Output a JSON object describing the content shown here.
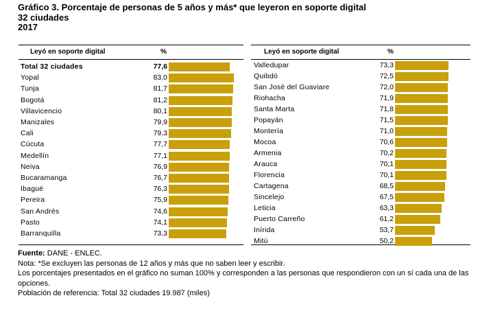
{
  "title": {
    "line1": "Gráfico 3. Porcentaje de personas de 5 años y más* que leyeron en soporte digital",
    "line2": "32 ciudades",
    "line3": "2017"
  },
  "chart_data": {
    "type": "bar",
    "orientation": "horizontal",
    "xlim": [
      0,
      100
    ],
    "color": "#c9a00b",
    "columns": [
      {
        "header_label": "Leyó en soporte digital",
        "header_value": "%",
        "rows": [
          {
            "label": "Total 32 ciudades",
            "value": 77.6,
            "display": "77,6",
            "bold": true
          },
          {
            "label": "Yopal",
            "value": 83.0,
            "display": "83,0"
          },
          {
            "label": "Tunja",
            "value": 81.7,
            "display": "81,7"
          },
          {
            "label": "Bogotá",
            "value": 81.2,
            "display": "81,2"
          },
          {
            "label": "Villavicencio",
            "value": 80.1,
            "display": "80,1"
          },
          {
            "label": "Manizales",
            "value": 79.9,
            "display": "79,9"
          },
          {
            "label": "Cali",
            "value": 79.3,
            "display": "79,3"
          },
          {
            "label": "Cúcuta",
            "value": 77.7,
            "display": "77,7"
          },
          {
            "label": "Medellín",
            "value": 77.1,
            "display": "77,1"
          },
          {
            "label": "Neiva",
            "value": 76.9,
            "display": "76,9"
          },
          {
            "label": "Bucaramanga",
            "value": 76.7,
            "display": "76,7"
          },
          {
            "label": "Ibagué",
            "value": 76.3,
            "display": "76,3"
          },
          {
            "label": "Pereira",
            "value": 75.9,
            "display": "75,9"
          },
          {
            "label": "San Andrés",
            "value": 74.6,
            "display": "74,6"
          },
          {
            "label": "Pasto",
            "value": 74.1,
            "display": "74,1"
          },
          {
            "label": "Barranquilla",
            "value": 73.3,
            "display": "73,3"
          }
        ]
      },
      {
        "header_label": "Leyó en soporte digital",
        "header_value": "%",
        "rows": [
          {
            "label": "Valledupar",
            "value": 73.3,
            "display": "73,3"
          },
          {
            "label": "Quibdó",
            "value": 72.5,
            "display": "72,5"
          },
          {
            "label": "San José del Guaviare",
            "value": 72.0,
            "display": "72,0"
          },
          {
            "label": "Riohacha",
            "value": 71.9,
            "display": "71,9"
          },
          {
            "label": "Santa Marta",
            "value": 71.8,
            "display": "71,8"
          },
          {
            "label": "Popayán",
            "value": 71.5,
            "display": "71,5"
          },
          {
            "label": "Montería",
            "value": 71.0,
            "display": "71,0"
          },
          {
            "label": "Mocoa",
            "value": 70.6,
            "display": "70,6"
          },
          {
            "label": "Armenia",
            "value": 70.2,
            "display": "70,2"
          },
          {
            "label": "Arauca",
            "value": 70.1,
            "display": "70,1"
          },
          {
            "label": "Florencia",
            "value": 70.1,
            "display": "70,1"
          },
          {
            "label": "Cartagena",
            "value": 68.5,
            "display": "68,5"
          },
          {
            "label": "Sincelejo",
            "value": 67.5,
            "display": "67,5"
          },
          {
            "label": "Leticia",
            "value": 63.3,
            "display": "63,3"
          },
          {
            "label": "Puerto Carreño",
            "value": 61.2,
            "display": "61,2"
          },
          {
            "label": "Inírida",
            "value": 53.7,
            "display": "53,7"
          },
          {
            "label": "Mitú",
            "value": 50.2,
            "display": "50,2"
          }
        ]
      }
    ]
  },
  "footer": {
    "source_label": "Fuente:",
    "source_text": " DANE - ENLEC.",
    "note1": "Nota: *Se excluyen las personas de 12 años y más que no saben leer y escribir.",
    "note2": "Los porcentajes presentados en el gráfico no suman 100% y corresponden a las personas que respondieron con un sí cada una de las opciones.",
    "note3": "Población de referencia: Total 32 ciudades 19.987 (miles)"
  }
}
